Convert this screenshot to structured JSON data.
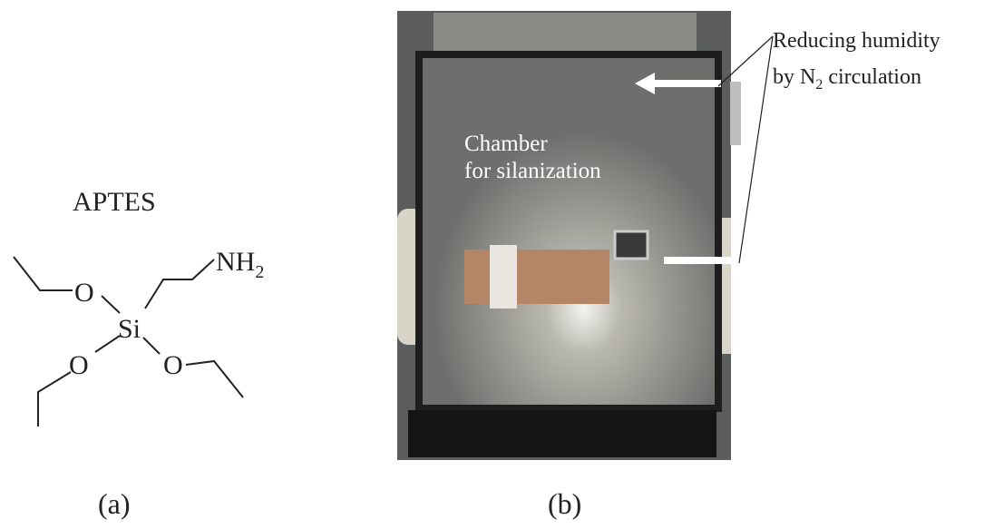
{
  "panel_a": {
    "title": "APTES",
    "atoms": {
      "o_top": "O",
      "si": "Si",
      "o_left": "O",
      "o_right": "O",
      "amine": "NH",
      "amine_sub": "2"
    },
    "caption": "(a)"
  },
  "panel_b": {
    "chamber_label": [
      "Chamber",
      "for silanization"
    ],
    "annotation": {
      "line1": "Reducing humidity",
      "line2_pre": "by N",
      "line2_sub": "2",
      "line2_post": " circulation"
    },
    "caption": "(b)"
  }
}
